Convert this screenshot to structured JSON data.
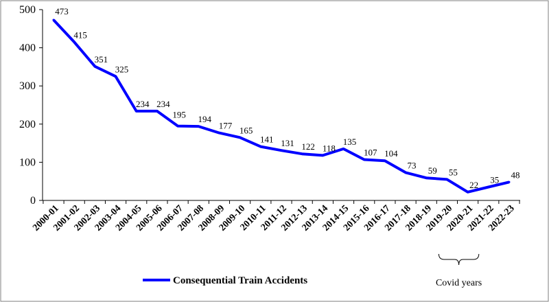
{
  "chart_data": {
    "type": "line",
    "title": "",
    "xlabel": "",
    "ylabel": "",
    "ylim": [
      0,
      500
    ],
    "y_ticks": [
      "0",
      "100",
      "200",
      "300",
      "400",
      "500"
    ],
    "y_tick_values": [
      0,
      100,
      200,
      300,
      400,
      500
    ],
    "grid": false,
    "legend_position": "bottom-center",
    "categories": [
      "2000-01",
      "2001-02",
      "2002-03",
      "2003-04",
      "2004-05",
      "2005-06",
      "2006-07",
      "2007-08",
      "2008-09",
      "2009-10",
      "2010-11",
      "2011-12",
      "2012-13",
      "2013-14",
      "2014-15",
      "2015-16",
      "2016-17",
      "2017-18",
      "2018-19",
      "2019-20",
      "2020-21",
      "2021-22",
      "2022-23"
    ],
    "series": [
      {
        "name": "Consequential Train Accidents",
        "color": "#0000FF",
        "values": [
          473,
          415,
          351,
          325,
          234,
          234,
          195,
          194,
          177,
          165,
          141,
          131,
          122,
          118,
          135,
          107,
          104,
          73,
          59,
          55,
          22,
          35,
          48
        ],
        "labels": [
          "473",
          "415",
          "351",
          "325",
          "234",
          "234",
          "195",
          "194",
          "177",
          "165",
          "141",
          "131",
          "122",
          "118",
          "135",
          "107",
          "104",
          "73",
          "59",
          "55",
          "22",
          "35",
          "48"
        ]
      }
    ],
    "annotation": {
      "text": "Covid  years",
      "from": "2019-20",
      "to": "2021-22"
    }
  }
}
